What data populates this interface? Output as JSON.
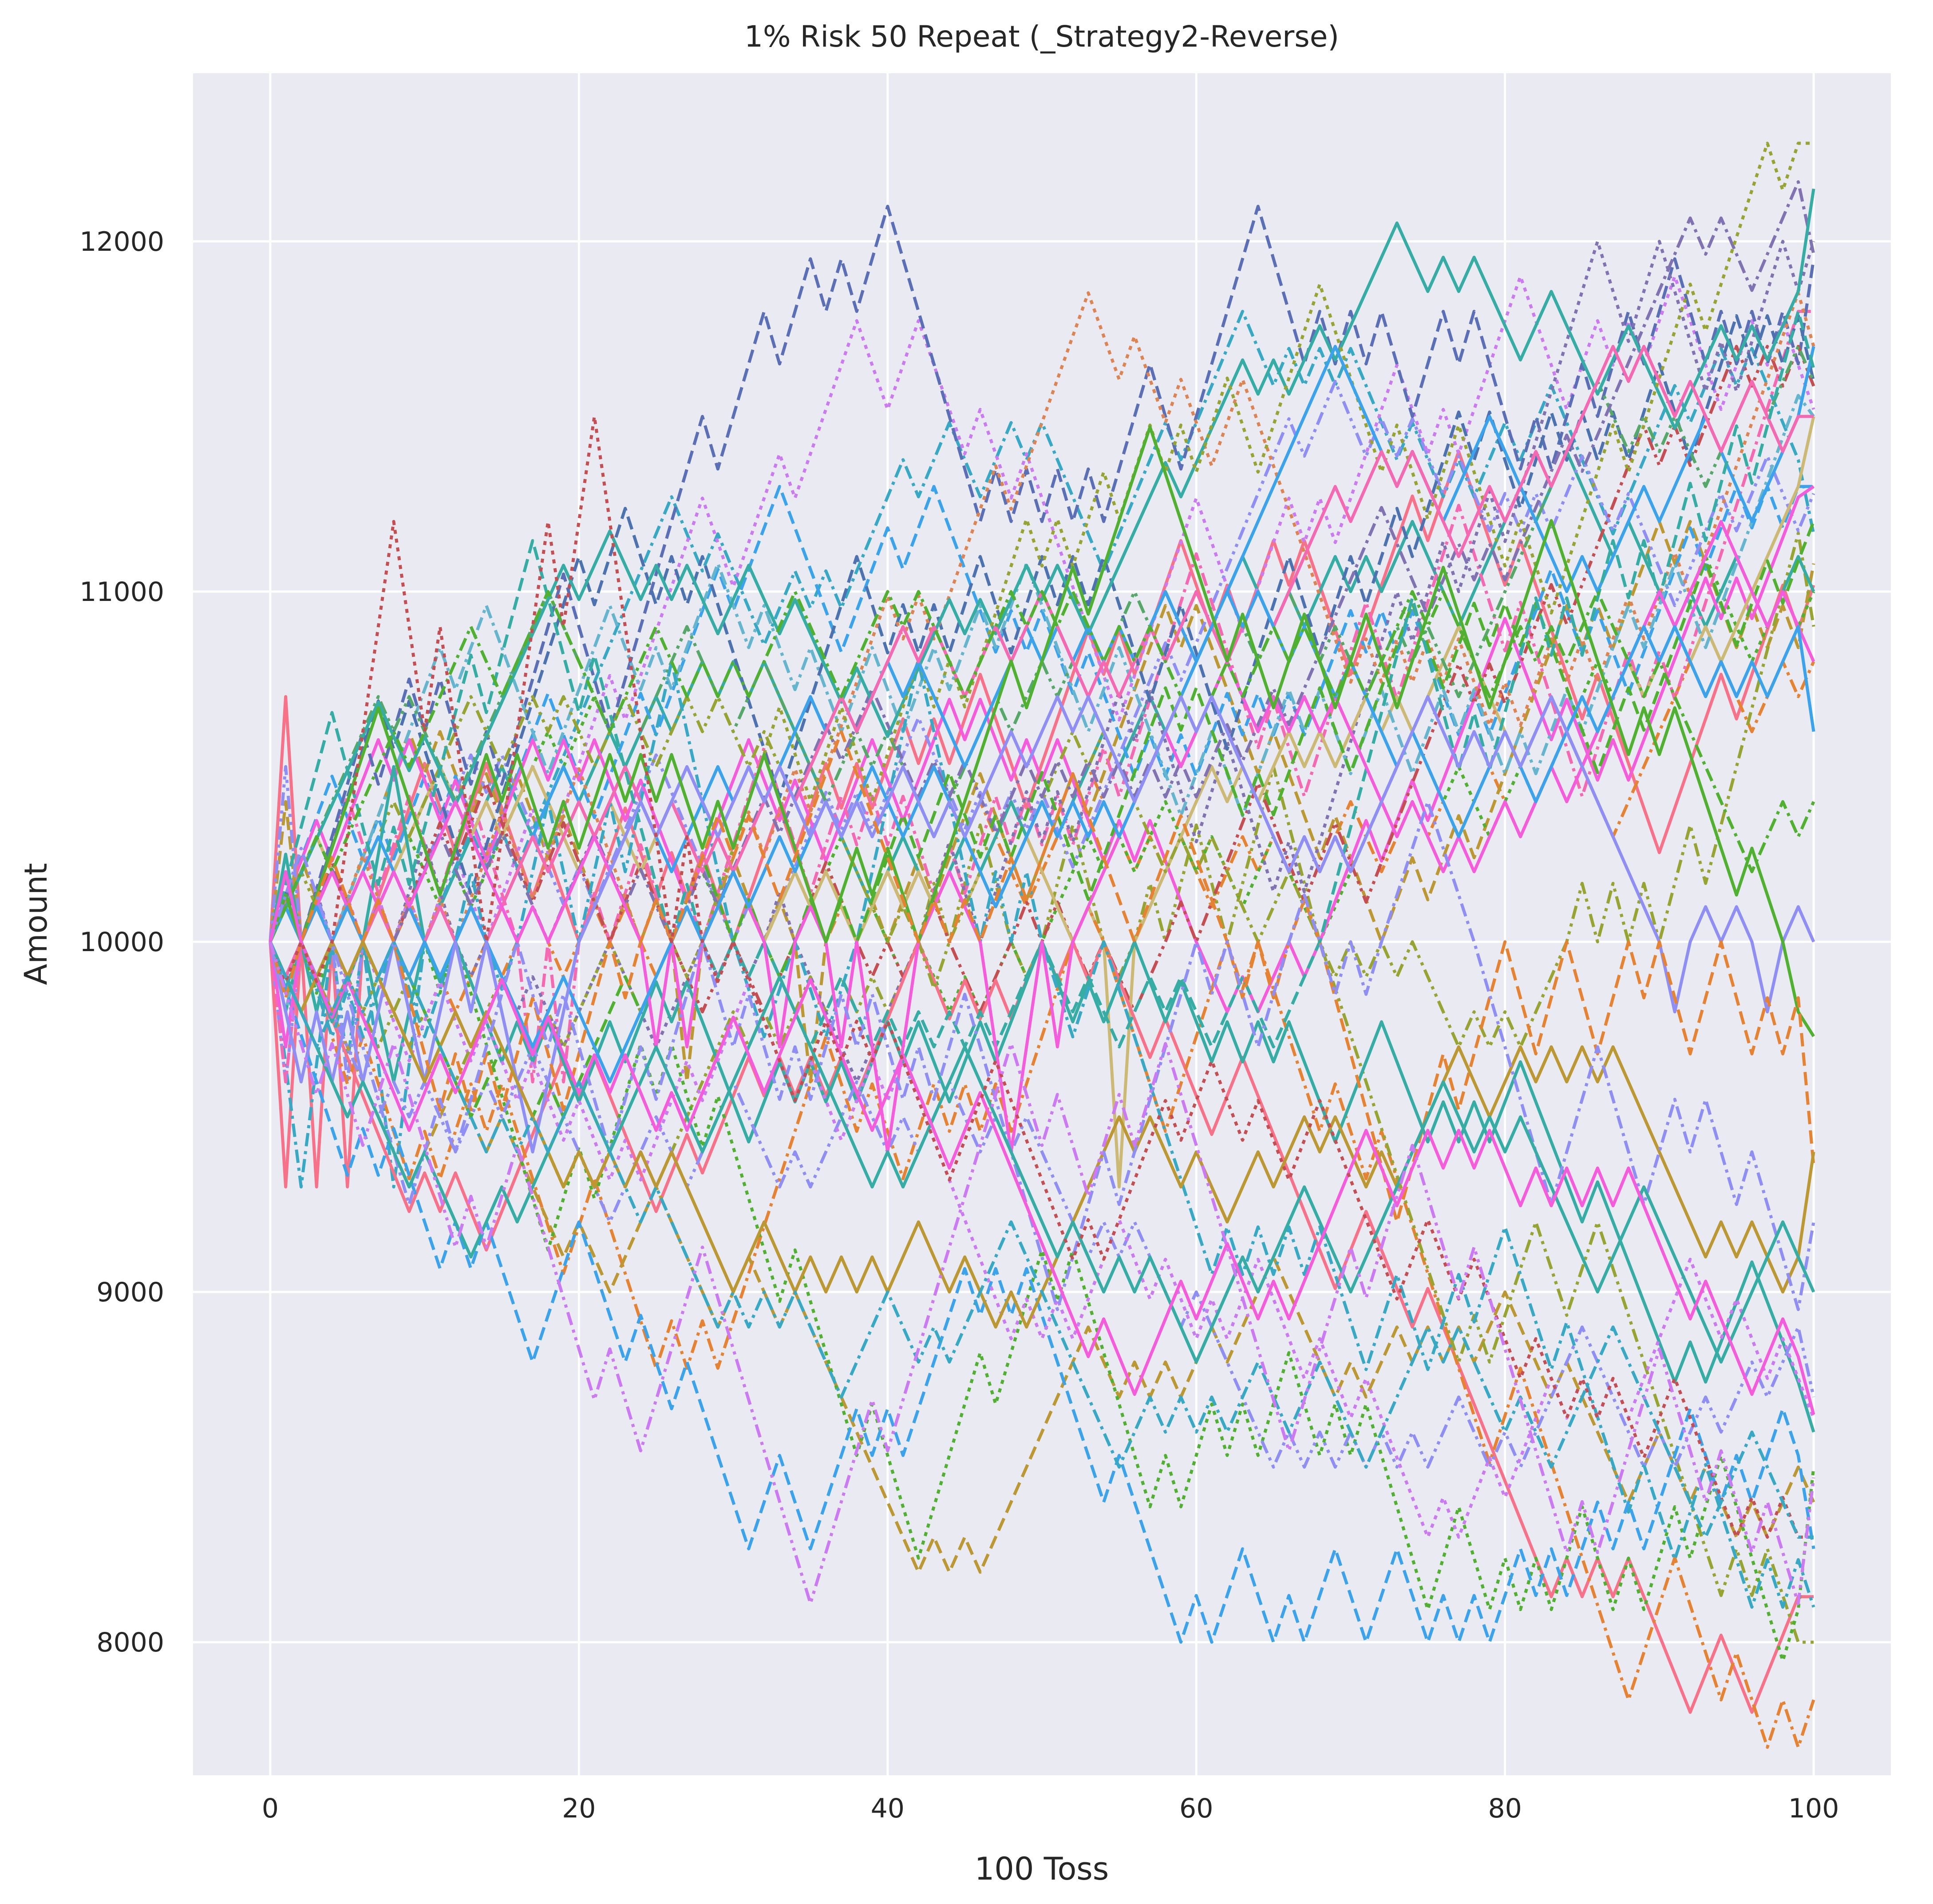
{
  "chart_data": {
    "type": "line",
    "title": "1% Risk 50 Repeat (_Strategy2-Reverse)",
    "xlabel": "100 Toss",
    "ylabel": "Amount",
    "xlim": [
      -5,
      105
    ],
    "ylim": [
      7620,
      12480
    ],
    "xticks": [
      0,
      20,
      40,
      60,
      80,
      100
    ],
    "yticks": [
      8000,
      9000,
      10000,
      11000,
      12000
    ],
    "grid": true,
    "legend": "none",
    "x": "0..100 (101 tosses)",
    "series_style": {
      "palette": [
        "#f77189",
        "#e68332",
        "#bb9832",
        "#97a431",
        "#50b131",
        "#36ada4",
        "#38a9c5",
        "#3ba3ec",
        "#8e8ef4",
        "#cc7af4",
        "#f45cdc",
        "#f569b2",
        "#5a6fb5",
        "#c44e52",
        "#8172b2",
        "#ccb974",
        "#64b5cd",
        "#4c72b0",
        "#55a868",
        "#dd8452"
      ],
      "dashes": [
        "solid",
        "dash",
        "dot",
        "dashdot",
        "dashdotdot"
      ],
      "repeats": 50,
      "start_value": 10000
    },
    "series": [
      {
        "end": 11930,
        "max": 12170,
        "min": 9980,
        "color": "#8172b2",
        "dash": "dashdot"
      },
      {
        "end": 12150,
        "max": 12150,
        "min": 9450,
        "color": "#36ada4",
        "dash": "solid"
      },
      {
        "end": 11700,
        "max": 12280,
        "min": 9600,
        "color": "#97a431",
        "dash": "dot"
      },
      {
        "end": 11680,
        "max": 11700,
        "min": 9700,
        "color": "#3ba3ec",
        "dash": "solid"
      },
      {
        "end": 11450,
        "max": 11700,
        "min": 9900,
        "color": "#f569b2",
        "dash": "solid"
      },
      {
        "end": 11200,
        "max": 11450,
        "min": 9500,
        "color": "#50b131",
        "dash": "dash"
      },
      {
        "end": 11000,
        "max": 11800,
        "min": 9700,
        "color": "#36ada4",
        "dash": "dash"
      },
      {
        "end": 10780,
        "max": 11200,
        "min": 9400,
        "color": "#f45cdc",
        "dash": "solid"
      },
      {
        "end": 10570,
        "max": 11000,
        "min": 9600,
        "color": "#3ba3ec",
        "dash": "solid"
      },
      {
        "end": 10360,
        "max": 11000,
        "min": 9500,
        "color": "#50b131",
        "dash": "dashdot"
      },
      {
        "end": 9950,
        "max": 10700,
        "min": 9400,
        "color": "#8e8ef4",
        "dash": "solid"
      },
      {
        "end": 9730,
        "max": 11470,
        "min": 9400,
        "color": "#50b131",
        "dash": "solid"
      },
      {
        "end": 9560,
        "max": 10600,
        "min": 9200,
        "color": "#e68332",
        "dash": "dash"
      },
      {
        "end": 9370,
        "max": 10500,
        "min": 8900,
        "color": "#bb9832",
        "dash": "solid"
      },
      {
        "end": 9200,
        "max": 10400,
        "min": 8800,
        "color": "#8e8ef4",
        "dash": "dashdot"
      },
      {
        "end": 9000,
        "max": 10300,
        "min": 8800,
        "color": "#36ada4",
        "dash": "solid"
      },
      {
        "end": 8650,
        "max": 10200,
        "min": 8600,
        "color": "#f45cdc",
        "dash": "solid"
      },
      {
        "end": 8470,
        "max": 11500,
        "min": 8300,
        "color": "#c44e52",
        "dash": "dot"
      },
      {
        "end": 8320,
        "max": 10500,
        "min": 8300,
        "color": "#38a9c5",
        "dash": "dashdot"
      },
      {
        "end": 8470,
        "max": 10000,
        "min": 7820,
        "color": "#cc7af4",
        "dash": "dashdotdot"
      }
    ]
  }
}
